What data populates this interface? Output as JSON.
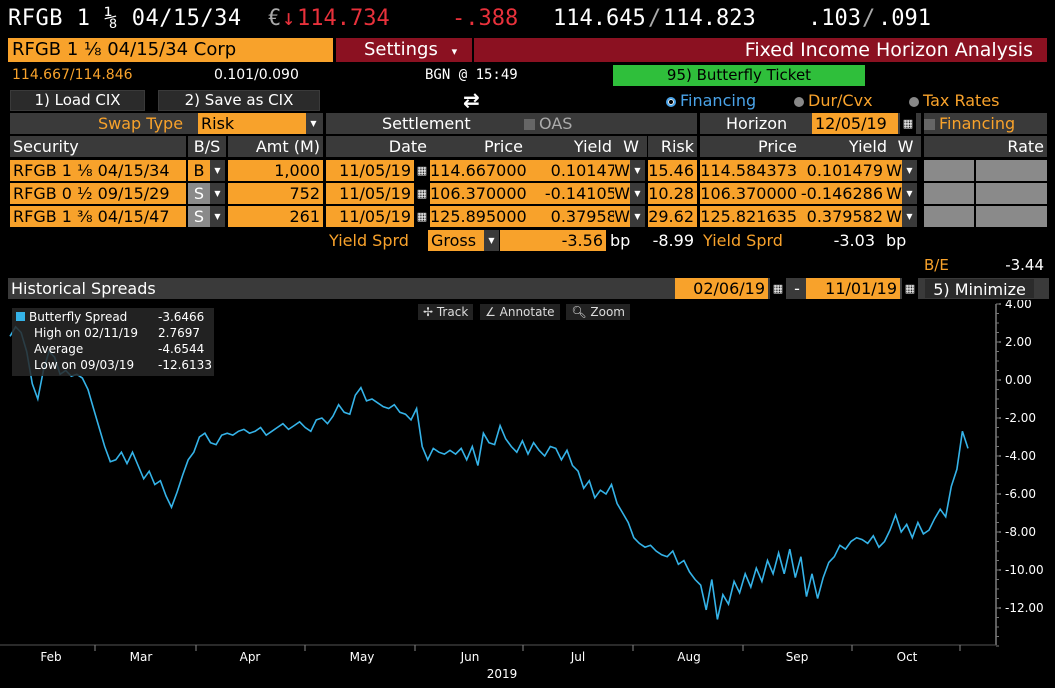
{
  "quote": {
    "security": "RFGB 1 ⅛ 04/15/34",
    "currency_symbol": "€",
    "down_arrow": "↓",
    "last": "114.734",
    "change": "-.388",
    "bid": "114.645",
    "ask": "114.823",
    "bid_yield": ".103",
    "ask_yield": ".091",
    "sep": "/"
  },
  "titlebar": {
    "security": "RFGB 1 ⅛ 04/15/34 Corp",
    "settings": "Settings",
    "settings_caret": "▾",
    "function_title": "Fixed Income Horizon Analysis"
  },
  "subbar": {
    "price": "114.667/114.846",
    "yield": "0.101/0.090",
    "source": "BGN @ 15:49",
    "ticket": "95) Butterfly Ticket"
  },
  "actions": {
    "load": "1) Load CIX",
    "save": "2) Save as CIX",
    "refresh_icon": "⇄"
  },
  "modes": {
    "financing": "Financing",
    "durcvx": "Dur/Cvx",
    "tax": "Tax Rates"
  },
  "colors": {
    "amber": "#f8a22b",
    "red_title": "#8b1121",
    "green_ticket": "#2fbf3b",
    "line": "#35b3e8"
  },
  "swap": {
    "label": "Swap Type",
    "value": "Risk",
    "settlement_label": "Settlement",
    "oas_label": "OAS",
    "horizon_label": "Horizon",
    "horizon_date": "12/05/19",
    "financing_label": "Financing"
  },
  "columns": {
    "security": "Security",
    "bs": "B/S",
    "amt": "Amt (M)",
    "date": "Date",
    "price": "Price",
    "yield": "Yield",
    "w": "W",
    "risk": "Risk",
    "h_price": "Price",
    "h_yield": "Yield",
    "h_w": "W",
    "rate": "Rate"
  },
  "rows": [
    {
      "security": "RFGB 1 ⅛ 04/15/34",
      "bs": "B",
      "amt": "1,000",
      "date": "11/05/19",
      "price": "114.667000",
      "yield": "0.101479",
      "w": "W",
      "risk": "15.46",
      "h_price": "114.584373",
      "h_yield": "0.101479",
      "h_w": "W"
    },
    {
      "security": "RFGB 0 ½ 09/15/29",
      "bs": "S",
      "amt": "752",
      "date": "11/05/19",
      "price": "106.370000",
      "yield": "-0.141059",
      "w": "W",
      "risk": "10.28",
      "h_price": "106.370000",
      "h_yield": "-0.146286",
      "h_w": "W"
    },
    {
      "security": "RFGB 1 ⅜ 04/15/47",
      "bs": "S",
      "amt": "261",
      "date": "11/05/19",
      "price": "125.895000",
      "yield": "0.379582",
      "w": "W",
      "risk": "29.62",
      "h_price": "125.821635",
      "h_yield": "0.379582",
      "h_w": "W"
    }
  ],
  "spread": {
    "label": "Yield Sprd",
    "mode": "Gross",
    "value": "-3.56",
    "unit": "bp",
    "risk_total": "-8.99",
    "h_label": "Yield Sprd",
    "h_value": "-3.03",
    "h_unit": "bp",
    "be_label": "B/E",
    "be_value": "-3.44"
  },
  "history": {
    "title": "Historical Spreads",
    "start": "02/06/19",
    "dash": "-",
    "end": "11/01/19",
    "minimize": "5) Minimize",
    "track": "✢ Track",
    "annotate": "∠ Annotate",
    "zoom": "🔍︎ Zoom"
  },
  "legend": {
    "series": "Butterfly Spread",
    "series_val": "-3.6466",
    "high": "High on 02/11/19",
    "high_val": "2.7697",
    "avg": "Average",
    "avg_val": "-4.6544",
    "low": "Low on 09/03/19",
    "low_val": "-12.6133"
  },
  "chart_data": {
    "type": "line",
    "series": [
      {
        "name": "Butterfly Spread",
        "x_start": "2019-02-06",
        "x_end": "2019-11-01"
      }
    ],
    "y_ticks": [
      "4.00",
      "2.00",
      "0.00",
      "-2.00",
      "-4.00",
      "-6.00",
      "-8.00",
      "-10.00",
      "-12.00"
    ],
    "x_ticks": [
      "Feb",
      "Mar",
      "Apr",
      "May",
      "Jun",
      "Jul",
      "Aug",
      "Sep",
      "Oct"
    ],
    "year": "2019",
    "ylim": [
      -14,
      4
    ],
    "values": [
      2.3,
      2.8,
      2.5,
      1.5,
      -0.2,
      -1.0,
      0.5,
      1.5,
      1.2,
      0.3,
      0.5,
      0.2,
      0.3,
      0.1,
      -0.5,
      -1.5,
      -2.5,
      -3.5,
      -4.3,
      -4.2,
      -3.8,
      -4.4,
      -3.8,
      -4.5,
      -5.2,
      -4.8,
      -5.5,
      -5.3,
      -6.1,
      -6.7,
      -5.9,
      -5.0,
      -4.2,
      -3.8,
      -3.0,
      -2.8,
      -3.3,
      -3.4,
      -2.9,
      -2.8,
      -2.9,
      -2.7,
      -2.6,
      -2.8,
      -2.7,
      -2.5,
      -2.9,
      -2.7,
      -2.5,
      -2.3,
      -2.6,
      -2.4,
      -2.2,
      -2.5,
      -2.7,
      -2.1,
      -2.0,
      -2.3,
      -1.9,
      -1.3,
      -1.7,
      -1.8,
      -0.8,
      -0.4,
      -1.1,
      -1.0,
      -1.2,
      -1.4,
      -1.5,
      -1.3,
      -1.7,
      -1.8,
      -2.1,
      -1.5,
      -3.5,
      -4.2,
      -3.6,
      -3.8,
      -3.9,
      -3.7,
      -3.9,
      -3.6,
      -4.2,
      -3.5,
      -4.5,
      -2.8,
      -3.3,
      -3.4,
      -2.4,
      -3.1,
      -3.5,
      -3.8,
      -3.2,
      -3.9,
      -3.3,
      -3.7,
      -4.0,
      -3.5,
      -3.6,
      -4.2,
      -3.7,
      -4.5,
      -4.8,
      -5.7,
      -5.3,
      -6.2,
      -5.8,
      -6.0,
      -5.5,
      -6.5,
      -7.0,
      -7.5,
      -8.3,
      -8.6,
      -8.8,
      -8.7,
      -9.0,
      -9.2,
      -9.3,
      -9.0,
      -9.7,
      -9.5,
      -10.1,
      -10.5,
      -10.8,
      -12.1,
      -10.5,
      -12.6,
      -11.3,
      -11.8,
      -10.6,
      -11.2,
      -10.2,
      -10.9,
      -9.9,
      -10.6,
      -9.5,
      -10.2,
      -9.1,
      -10.2,
      -8.9,
      -10.4,
      -9.3,
      -11.4,
      -10.2,
      -11.5,
      -10.4,
      -9.6,
      -9.3,
      -8.7,
      -8.9,
      -8.5,
      -8.3,
      -8.4,
      -8.6,
      -8.2,
      -8.8,
      -8.5,
      -7.9,
      -7.1,
      -8.0,
      -7.6,
      -8.3,
      -7.5,
      -8.1,
      -7.9,
      -7.3,
      -6.8,
      -7.2,
      -5.6,
      -4.7,
      -2.7,
      -3.6
    ]
  }
}
